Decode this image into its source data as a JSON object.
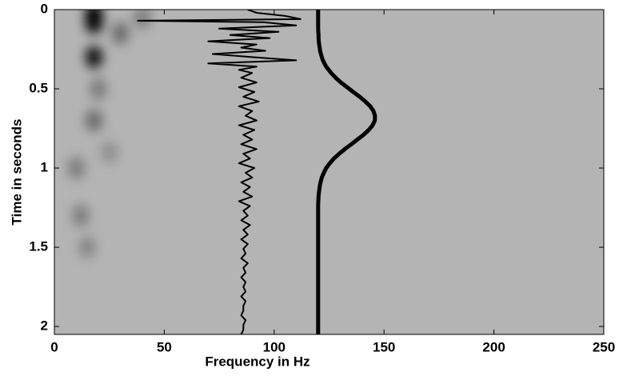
{
  "chart_data": {
    "type": "line",
    "xlabel": "Frequency in Hz",
    "ylabel": "Time in seconds",
    "xlim": [
      0,
      250
    ],
    "xticks": [
      0,
      50,
      100,
      150,
      200,
      250
    ],
    "ylim": [
      0,
      2.05
    ],
    "yticks": [
      0,
      0.5,
      1,
      1.5,
      2
    ],
    "y_inverted": true,
    "background": "#b4b4b4",
    "heatmap": {
      "color": "#000000",
      "x": [
        18,
        18,
        18,
        18,
        20,
        30,
        40,
        10,
        12,
        15,
        25
      ],
      "y": [
        0.03,
        0.08,
        0.3,
        0.7,
        0.5,
        0.15,
        0.05,
        1.0,
        1.3,
        1.5,
        0.9
      ],
      "values": [
        1,
        1,
        0.9,
        0.4,
        0.3,
        0.4,
        0.3,
        0.3,
        0.3,
        0.25,
        0.2
      ]
    },
    "y": [
      0,
      0.02,
      0.04,
      0.06,
      0.07,
      0.08,
      0.1,
      0.12,
      0.14,
      0.16,
      0.18,
      0.2,
      0.22,
      0.24,
      0.26,
      0.28,
      0.3,
      0.32,
      0.34,
      0.36,
      0.38,
      0.4,
      0.43,
      0.46,
      0.49,
      0.52,
      0.55,
      0.58,
      0.61,
      0.64,
      0.67,
      0.7,
      0.73,
      0.76,
      0.79,
      0.82,
      0.85,
      0.88,
      0.91,
      0.94,
      0.97,
      1.0,
      1.03,
      1.06,
      1.09,
      1.12,
      1.15,
      1.18,
      1.21,
      1.24,
      1.27,
      1.3,
      1.33,
      1.36,
      1.39,
      1.42,
      1.45,
      1.48,
      1.51,
      1.54,
      1.57,
      1.6,
      1.63,
      1.66,
      1.69,
      1.72,
      1.75,
      1.78,
      1.81,
      1.84,
      1.87,
      1.9,
      1.93,
      1.96,
      1.99,
      2.02,
      2.05
    ],
    "series": [
      {
        "color": "#000000",
        "line_width": 2,
        "values": [
          88,
          92,
          105,
          112,
          38,
          95,
          110,
          75,
          102,
          80,
          98,
          70,
          92,
          85,
          96,
          72,
          90,
          110,
          70,
          92,
          84,
          90,
          85,
          92,
          84,
          91,
          86,
          93,
          84,
          90,
          87,
          92,
          84,
          91,
          86,
          90,
          85,
          92,
          86,
          89,
          84,
          91,
          87,
          90,
          85,
          89,
          86,
          90,
          84,
          89,
          86,
          88,
          85,
          89,
          86,
          88,
          85,
          88,
          86,
          87,
          85,
          88,
          86,
          87,
          85,
          87,
          86,
          87,
          85,
          87,
          86,
          86,
          85,
          87,
          86,
          86,
          85
        ]
      },
      {
        "color": "#000000",
        "line_width": 5,
        "values": [
          120,
          120,
          120,
          120,
          120,
          120,
          120,
          120,
          120.1,
          120.2,
          120.2,
          120.3,
          120.5,
          120.7,
          120.9,
          121.3,
          121.7,
          122.2,
          122.9,
          123.7,
          124.8,
          125.9,
          128.0,
          130.4,
          133.2,
          136.0,
          138.9,
          141.5,
          143.7,
          145.2,
          145.9,
          145.8,
          144.8,
          143.0,
          140.7,
          137.9,
          135.1,
          132.2,
          129.6,
          127.2,
          125.3,
          123.7,
          122.6,
          121.7,
          121.1,
          120.7,
          120.4,
          120.2,
          120.1,
          120,
          120,
          120,
          120,
          120,
          120,
          120,
          120,
          120,
          120,
          120,
          120,
          120,
          120,
          120,
          120,
          120,
          120,
          120,
          120,
          120,
          120,
          120,
          120,
          120,
          120,
          120,
          120
        ]
      }
    ]
  }
}
